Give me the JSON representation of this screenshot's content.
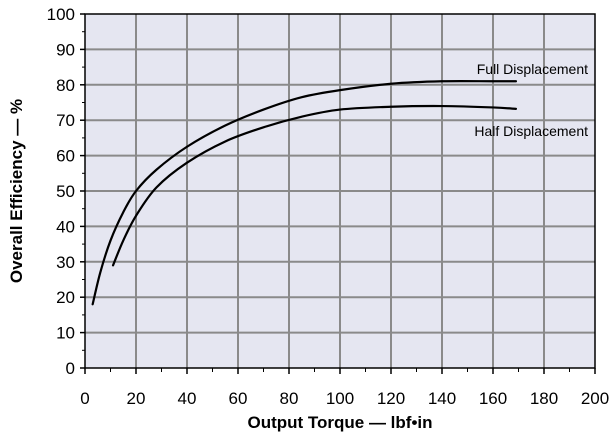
{
  "chart_data": {
    "type": "line",
    "xlabel": "Output Torque — lbf•in",
    "ylabel": "Overall Efficiency — %",
    "xlim": [
      0,
      200
    ],
    "ylim": [
      0,
      100
    ],
    "x_ticks": [
      0,
      20,
      40,
      60,
      80,
      100,
      120,
      140,
      160,
      180,
      200
    ],
    "y_ticks": [
      0,
      10,
      20,
      30,
      40,
      50,
      60,
      70,
      80,
      90,
      100
    ],
    "grid": true,
    "background_color": "#e5e6f1",
    "grid_color": "#8a8a8a",
    "line_color": "#000000",
    "series": [
      {
        "name": "Full Displacement",
        "x": [
          3,
          6,
          10,
          15,
          20,
          28,
          40,
          55,
          70,
          85,
          100,
          120,
          140,
          160,
          169
        ],
        "y": [
          18,
          27,
          36,
          44,
          50,
          56,
          62.5,
          68.5,
          73,
          76.5,
          78.5,
          80.3,
          81,
          81,
          81
        ]
      },
      {
        "name": "Half Displacement",
        "x": [
          11,
          15,
          20,
          28,
          40,
          55,
          70,
          85,
          100,
          120,
          140,
          160,
          169
        ],
        "y": [
          29,
          36,
          43,
          51,
          58,
          64,
          68,
          71,
          73,
          73.8,
          74,
          73.6,
          73.2
        ]
      }
    ]
  }
}
